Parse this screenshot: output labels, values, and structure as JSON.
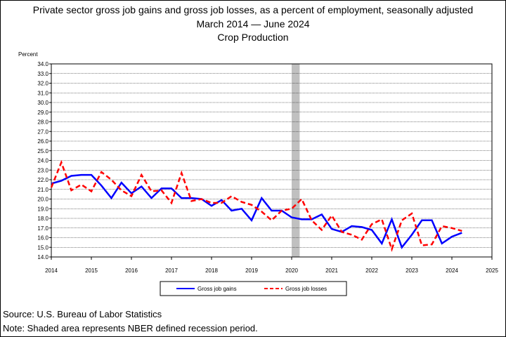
{
  "title": "Private sector gross job gains and gross job losses, as a percent of employment, seasonally adjusted",
  "subtitle": "March 2014 — June 2024",
  "industry": "Crop Production",
  "source": "Source: U.S. Bureau of Labor Statistics",
  "note": "Note: Shaded area represents NBER defined recession period.",
  "chart_data": {
    "type": "line",
    "ylabel": "Percent",
    "ylim": [
      14.0,
      34.0
    ],
    "yticks": [
      "14.0",
      "15.0",
      "16.0",
      "17.0",
      "18.0",
      "19.0",
      "20.0",
      "21.0",
      "22.0",
      "23.0",
      "24.0",
      "25.0",
      "26.0",
      "27.0",
      "28.0",
      "29.0",
      "30.0",
      "31.0",
      "32.0",
      "33.0",
      "34.0"
    ],
    "xlim": [
      2014,
      2025
    ],
    "xticks": [
      "2014",
      "2015",
      "2016",
      "2017",
      "2018",
      "2019",
      "2020",
      "2021",
      "2022",
      "2023",
      "2024",
      "2025"
    ],
    "recession": {
      "start": 2020.0,
      "end": 2020.2
    },
    "grid": true,
    "legend_position": "bottom",
    "series": [
      {
        "name": "Gross job gains",
        "color": "#0000ff",
        "style": "solid",
        "x": [
          2014.0,
          2014.25,
          2014.5,
          2014.75,
          2015.0,
          2015.25,
          2015.5,
          2015.75,
          2016.0,
          2016.25,
          2016.5,
          2016.75,
          2017.0,
          2017.25,
          2017.5,
          2017.75,
          2018.0,
          2018.25,
          2018.5,
          2018.75,
          2019.0,
          2019.25,
          2019.5,
          2019.75,
          2020.0,
          2020.25,
          2020.5,
          2020.75,
          2021.0,
          2021.25,
          2021.5,
          2021.75,
          2022.0,
          2022.25,
          2022.5,
          2022.75,
          2023.0,
          2023.25,
          2023.5,
          2023.75,
          2024.0,
          2024.25
        ],
        "y": [
          21.6,
          21.9,
          22.4,
          22.5,
          22.5,
          21.4,
          20.1,
          21.7,
          20.6,
          21.3,
          20.1,
          21.1,
          21.1,
          20.1,
          20.1,
          20.0,
          19.3,
          19.9,
          18.8,
          19.0,
          17.8,
          20.1,
          18.8,
          18.8,
          18.1,
          17.9,
          17.9,
          18.4,
          16.9,
          16.6,
          17.2,
          17.1,
          16.8,
          15.4,
          17.9,
          15.0,
          16.3,
          17.8,
          17.8,
          15.4,
          16.1,
          16.5
        ]
      },
      {
        "name": "Gross job losses",
        "color": "#ff0000",
        "style": "dashed",
        "x": [
          2014.0,
          2014.25,
          2014.5,
          2014.75,
          2015.0,
          2015.25,
          2015.5,
          2015.75,
          2016.0,
          2016.25,
          2016.5,
          2016.75,
          2017.0,
          2017.25,
          2017.5,
          2017.75,
          2018.0,
          2018.25,
          2018.5,
          2018.75,
          2019.0,
          2019.25,
          2019.5,
          2019.75,
          2020.0,
          2020.25,
          2020.5,
          2020.75,
          2021.0,
          2021.25,
          2021.5,
          2021.75,
          2022.0,
          2022.25,
          2022.5,
          2022.75,
          2023.0,
          2023.25,
          2023.5,
          2023.75,
          2024.0,
          2024.25
        ],
        "y": [
          21.2,
          23.8,
          20.9,
          21.5,
          20.8,
          22.8,
          22.0,
          20.9,
          20.3,
          22.5,
          20.8,
          20.9,
          19.6,
          22.7,
          19.8,
          20.0,
          19.6,
          19.6,
          20.3,
          19.7,
          19.4,
          18.7,
          17.8,
          18.8,
          19.0,
          20.0,
          17.8,
          16.8,
          18.3,
          16.6,
          16.3,
          15.8,
          17.4,
          17.9,
          14.8,
          17.8,
          18.5,
          15.2,
          15.3,
          17.2,
          17.0,
          16.7
        ]
      }
    ]
  }
}
